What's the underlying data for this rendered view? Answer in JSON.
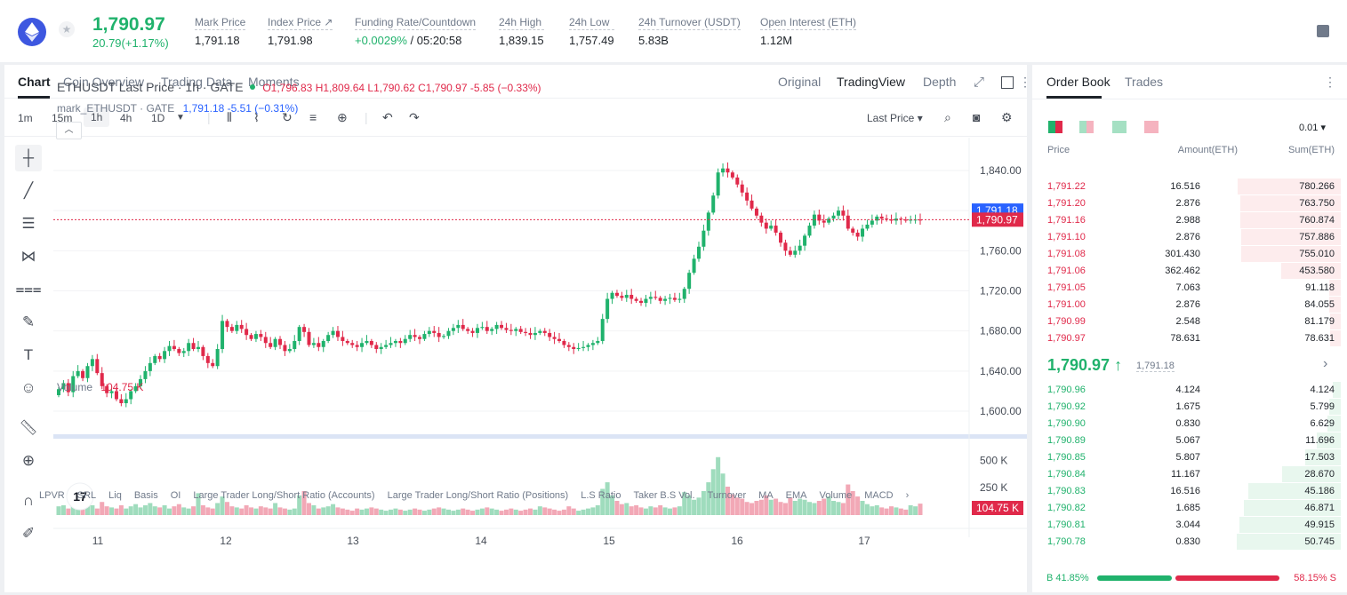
{
  "ticker": {
    "price": "1,790.97",
    "change": "20.79(+1.17%)",
    "stats": [
      {
        "label": "Mark Price",
        "value": "1,791.18"
      },
      {
        "label": "Index Price ↗",
        "value": "1,791.98"
      },
      {
        "label": "Funding Rate/Countdown",
        "value_green": "+0.0029%",
        "value": "/ 05:20:58"
      },
      {
        "label": "24h High",
        "value": "1,839.15"
      },
      {
        "label": "24h Low",
        "value": "1,757.49"
      },
      {
        "label": "24h Turnover (USDT)",
        "value": "5.83B"
      },
      {
        "label": "Open Interest (ETH)",
        "value": "1.12M"
      }
    ]
  },
  "chart_tabs": [
    "Chart",
    "Coin Overview",
    "Trading Data",
    "Moments"
  ],
  "views": [
    "Original",
    "TradingView",
    "Depth"
  ],
  "timeframes": [
    "1m",
    "15m",
    "1h",
    "4h",
    "1D"
  ],
  "price_source": "Last Price",
  "legend": {
    "symbol": "ETHUSDT Last Price · 1h · GATE",
    "ohlc": "O1,796.83  H1,809.64  L1,790.62  C1,790.97  -5.85  (−0.33%)",
    "mark_name": "mark_ETHUSDT · GATE",
    "mark_values": "1,791.18  -5.51  (−0.31%)",
    "volume_label": "Volume",
    "volume_value": "104.75 K"
  },
  "price_tags": {
    "mark": "1,791.18",
    "last": "1,790.97",
    "volume": "104.75 K"
  },
  "indicators": [
    "LPVR",
    "SRL",
    "Liq",
    "Basis",
    "OI",
    "Large Trader Long/Short Ratio (Accounts)",
    "Large Trader Long/Short Ratio (Positions)",
    "L.S Ratio",
    "Taker B.S Vol.",
    "Turnover",
    "MA",
    "EMA",
    "Volume",
    "MACD"
  ],
  "chart_data": {
    "type": "candlestick",
    "x_ticks": [
      "11",
      "12",
      "13",
      "14",
      "15",
      "16",
      "17"
    ],
    "y_ticks": [
      "1,840.00",
      "1,800.00",
      "1,760.00",
      "1,720.00",
      "1,680.00",
      "1,640.00",
      "1,600.00"
    ],
    "volume_ticks": [
      "500 K",
      "250 K"
    ],
    "ylim": [
      1585,
      1855
    ],
    "volume_max": 650,
    "closes": [
      1622,
      1628,
      1619,
      1635,
      1640,
      1633,
      1645,
      1652,
      1638,
      1625,
      1618,
      1620,
      1612,
      1608,
      1612,
      1620,
      1625,
      1632,
      1640,
      1648,
      1655,
      1652,
      1660,
      1665,
      1662,
      1658,
      1660,
      1668,
      1662,
      1664,
      1655,
      1648,
      1645,
      1662,
      1690,
      1684,
      1680,
      1686,
      1682,
      1676,
      1672,
      1677,
      1674,
      1668,
      1664,
      1672,
      1666,
      1660,
      1662,
      1670,
      1684,
      1679,
      1666,
      1668,
      1664,
      1670,
      1676,
      1680,
      1674,
      1670,
      1668,
      1666,
      1664,
      1668,
      1670,
      1666,
      1662,
      1664,
      1666,
      1668,
      1670,
      1668,
      1672,
      1676,
      1674,
      1672,
      1677,
      1680,
      1678,
      1674,
      1675,
      1680,
      1683,
      1686,
      1682,
      1680,
      1678,
      1683,
      1684,
      1680,
      1682,
      1686,
      1683,
      1681,
      1680,
      1682,
      1679,
      1678,
      1676,
      1678,
      1680,
      1678,
      1674,
      1672,
      1670,
      1666,
      1664,
      1662,
      1663,
      1664,
      1666,
      1668,
      1670,
      1692,
      1712,
      1718,
      1715,
      1713,
      1716,
      1712,
      1710,
      1708,
      1712,
      1714,
      1713,
      1710,
      1712,
      1713,
      1711,
      1712,
      1722,
      1738,
      1752,
      1764,
      1780,
      1798,
      1815,
      1838,
      1842,
      1838,
      1833,
      1826,
      1818,
      1810,
      1802,
      1795,
      1788,
      1782,
      1785,
      1778,
      1768,
      1760,
      1756,
      1760,
      1765,
      1775,
      1785,
      1796,
      1790,
      1788,
      1792,
      1795,
      1800,
      1795,
      1782,
      1778,
      1774,
      1782,
      1786,
      1790,
      1794,
      1792,
      1791,
      1790,
      1792,
      1791,
      1790,
      1791,
      1791,
      1790.97
    ],
    "volumes": [
      80,
      90,
      60,
      110,
      70,
      130,
      100,
      90,
      60,
      120,
      80,
      70,
      60,
      90,
      60,
      80,
      100,
      70,
      90,
      110,
      80,
      70,
      90,
      60,
      80,
      100,
      70,
      60,
      80,
      200,
      90,
      70,
      60,
      110,
      170,
      120,
      80,
      70,
      60,
      90,
      70,
      60,
      80,
      70,
      60,
      110,
      70,
      60,
      50,
      60,
      180,
      220,
      110,
      90,
      60,
      70,
      80,
      100,
      70,
      60,
      50,
      40,
      60,
      50,
      60,
      70,
      60,
      50,
      40,
      50,
      60,
      50,
      40,
      50,
      60,
      50,
      40,
      50,
      60,
      70,
      60,
      50,
      40,
      50,
      60,
      50,
      40,
      50,
      60,
      70,
      60,
      50,
      40,
      50,
      60,
      50,
      40,
      50,
      60,
      50,
      80,
      70,
      60,
      50,
      40,
      50,
      80,
      60,
      40,
      50,
      60,
      70,
      90,
      240,
      300,
      180,
      130,
      100,
      110,
      80,
      90,
      70,
      60,
      80,
      70,
      90,
      70,
      60,
      70,
      80,
      210,
      180,
      140,
      160,
      220,
      300,
      420,
      530,
      380,
      260,
      190,
      160,
      150,
      120,
      110,
      130,
      140,
      180,
      140,
      150,
      120,
      110,
      160,
      130,
      150,
      140,
      120,
      110,
      130,
      150,
      170,
      130,
      120,
      110,
      280,
      220,
      170,
      130,
      100,
      80,
      90,
      70,
      60,
      80,
      70,
      60,
      50,
      90,
      80,
      104.75
    ],
    "last_price": 1790.97,
    "mark_price": 1791.18
  },
  "orderbook": {
    "tabs": [
      "Order Book",
      "Trades"
    ],
    "precision": "0.01",
    "headers": [
      "Price",
      "Amount(ETH)",
      "Sum(ETH)"
    ],
    "asks": [
      {
        "price": "1,791.22",
        "amount": "16.516",
        "sum": "780.266",
        "fill": 0.98
      },
      {
        "price": "1,791.20",
        "amount": "2.876",
        "sum": "763.750",
        "fill": 0.96
      },
      {
        "price": "1,791.16",
        "amount": "2.988",
        "sum": "760.874",
        "fill": 0.96
      },
      {
        "price": "1,791.10",
        "amount": "2.876",
        "sum": "757.886",
        "fill": 0.95
      },
      {
        "price": "1,791.08",
        "amount": "301.430",
        "sum": "755.010",
        "fill": 0.95
      },
      {
        "price": "1,791.06",
        "amount": "362.462",
        "sum": "453.580",
        "fill": 0.57
      },
      {
        "price": "1,791.05",
        "amount": "7.063",
        "sum": "91.118",
        "fill": 0.11
      },
      {
        "price": "1,791.00",
        "amount": "2.876",
        "sum": "84.055",
        "fill": 0.11
      },
      {
        "price": "1,790.99",
        "amount": "2.548",
        "sum": "81.179",
        "fill": 0.1
      },
      {
        "price": "1,790.97",
        "amount": "78.631",
        "sum": "78.631",
        "fill": 0.1
      }
    ],
    "mid_price": "1,790.97 ↑",
    "mid_mark": "1,791.18",
    "bids": [
      {
        "price": "1,790.96",
        "amount": "4.124",
        "sum": "4.124",
        "fill": 0.08
      },
      {
        "price": "1,790.92",
        "amount": "1.675",
        "sum": "5.799",
        "fill": 0.11
      },
      {
        "price": "1,790.90",
        "amount": "0.830",
        "sum": "6.629",
        "fill": 0.13
      },
      {
        "price": "1,790.89",
        "amount": "5.067",
        "sum": "11.696",
        "fill": 0.23
      },
      {
        "price": "1,790.85",
        "amount": "5.807",
        "sum": "17.503",
        "fill": 0.34
      },
      {
        "price": "1,790.84",
        "amount": "11.167",
        "sum": "28.670",
        "fill": 0.56
      },
      {
        "price": "1,790.83",
        "amount": "16.516",
        "sum": "45.186",
        "fill": 0.88
      },
      {
        "price": "1,790.82",
        "amount": "1.685",
        "sum": "46.871",
        "fill": 0.92
      },
      {
        "price": "1,790.81",
        "amount": "3.044",
        "sum": "49.915",
        "fill": 0.97
      },
      {
        "price": "1,790.78",
        "amount": "0.830",
        "sum": "50.745",
        "fill": 0.99
      }
    ],
    "buy_ratio": "B 41.85%",
    "sell_ratio": "58.15% S",
    "buy_fraction": 0.4185
  },
  "colors": {
    "up": "#20b26c",
    "down": "#e0294a",
    "mark": "#2962ff"
  }
}
